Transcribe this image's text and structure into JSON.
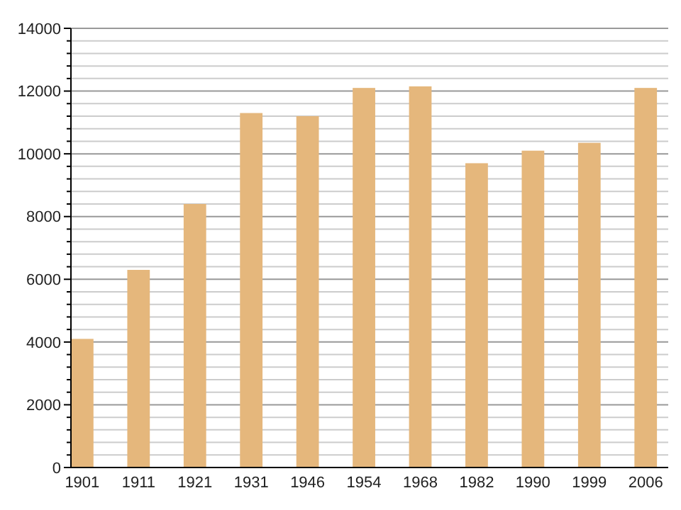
{
  "chart_data": {
    "type": "bar",
    "categories": [
      "1901",
      "1911",
      "1921",
      "1931",
      "1946",
      "1954",
      "1968",
      "1982",
      "1990",
      "1999",
      "2006"
    ],
    "values": [
      4100,
      6300,
      8400,
      11300,
      11200,
      12100,
      12150,
      9700,
      10100,
      10350,
      12100
    ],
    "color": "#e5b77c",
    "ylim": [
      0,
      14000
    ],
    "yticks": [
      0,
      {
        "value": 400,
        "label": null
      },
      {
        "value": 800,
        "label": null
      },
      {
        "value": 1200,
        "label": null
      },
      {
        "value": 1600,
        "label": null
      },
      2000,
      {
        "value": 2400,
        "label": null
      },
      {
        "value": 2800,
        "label": null
      },
      {
        "value": 3200,
        "label": null
      },
      {
        "value": 3600,
        "label": null
      },
      4000,
      {
        "value": 4400,
        "label": null
      },
      {
        "value": 4800,
        "label": null
      },
      {
        "value": 5200,
        "label": null
      },
      {
        "value": 5600,
        "label": null
      },
      6000,
      {
        "value": 6400,
        "label": null
      },
      {
        "value": 6800,
        "label": null
      },
      {
        "value": 7200,
        "label": null
      },
      {
        "value": 7600,
        "label": null
      },
      8000,
      {
        "value": 8400,
        "label": null
      },
      {
        "value": 8800,
        "label": null
      },
      {
        "value": 9200,
        "label": null
      },
      {
        "value": 9600,
        "label": null
      },
      10000,
      {
        "value": 10400,
        "label": null
      },
      {
        "value": 10800,
        "label": null
      },
      {
        "value": 11200,
        "label": null
      },
      {
        "value": 11600,
        "label": null
      },
      12000,
      {
        "value": 12400,
        "label": null
      },
      {
        "value": 12800,
        "label": null
      },
      {
        "value": 13200,
        "label": null
      },
      {
        "value": 13600,
        "label": null
      },
      14000
    ],
    "grid": true
  }
}
